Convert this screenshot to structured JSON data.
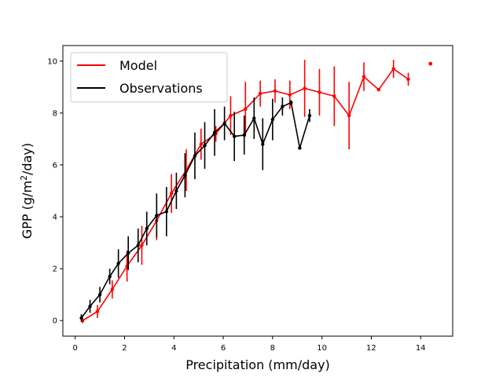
{
  "chart_data": {
    "type": "line",
    "title": "",
    "xlabel": "Precipitation (mm/day)",
    "ylabel_main": "GPP (g/m",
    "ylabel_sup": "2",
    "ylabel_tail": "/day)",
    "xlim": [
      -0.5,
      15.3
    ],
    "ylim": [
      -0.6,
      10.6
    ],
    "xticks": [
      0,
      2,
      4,
      6,
      8,
      10,
      12,
      14
    ],
    "yticks": [
      0,
      2,
      4,
      6,
      8,
      10
    ],
    "legend_position": "top-left",
    "grid": false,
    "series": [
      {
        "name": "Model",
        "color": "#ff0000",
        "x": [
          0.3,
          0.9,
          1.5,
          2.1,
          2.7,
          3.3,
          3.9,
          4.5,
          5.1,
          5.7,
          6.3,
          6.9,
          7.5,
          8.1,
          8.7,
          9.3,
          9.9,
          10.5,
          11.1,
          11.7,
          12.3,
          12.9,
          13.5
        ],
        "y": [
          0.0,
          0.35,
          1.2,
          2.1,
          2.9,
          3.85,
          4.9,
          5.8,
          6.8,
          7.2,
          7.9,
          8.15,
          8.75,
          8.85,
          8.7,
          8.95,
          8.8,
          8.65,
          7.9,
          9.4,
          8.9,
          9.7,
          9.3
        ],
        "err": [
          0.1,
          0.25,
          0.35,
          0.6,
          0.75,
          0.75,
          0.75,
          0.8,
          0.6,
          0.3,
          0.75,
          1.05,
          0.5,
          0.45,
          0.55,
          1.1,
          0.9,
          1.15,
          1.3,
          0.55,
          0.1,
          0.35,
          0.25
        ],
        "has_err": [
          true,
          true,
          true,
          true,
          true,
          true,
          true,
          true,
          true,
          true,
          true,
          true,
          true,
          true,
          true,
          true,
          true,
          true,
          true,
          true,
          false,
          true,
          true
        ],
        "isolated_point": {
          "x": 14.4,
          "y": 9.9
        }
      },
      {
        "name": "Observations",
        "color": "#000000",
        "x": [
          0.25,
          0.6,
          1.0,
          1.4,
          1.75,
          2.15,
          2.55,
          2.9,
          3.3,
          3.7,
          4.1,
          4.45,
          4.85,
          5.25,
          5.65,
          6.05,
          6.45,
          6.85,
          7.25,
          7.6,
          8.0,
          8.4,
          8.75,
          9.1,
          9.5
        ],
        "y": [
          0.1,
          0.55,
          1.0,
          1.7,
          2.2,
          2.6,
          2.9,
          3.55,
          4.05,
          4.2,
          5.0,
          5.6,
          6.35,
          6.75,
          7.25,
          7.6,
          7.1,
          7.15,
          7.8,
          6.8,
          7.75,
          8.25,
          8.4,
          6.65,
          7.9
        ],
        "err": [
          0.15,
          0.25,
          0.3,
          0.3,
          0.55,
          0.65,
          0.65,
          0.65,
          0.85,
          0.95,
          0.7,
          0.85,
          0.9,
          0.9,
          0.9,
          0.65,
          0.95,
          0.75,
          0.8,
          1.0,
          0.8,
          0.35,
          0.1,
          0.0,
          0.25
        ],
        "has_err": [
          true,
          true,
          true,
          true,
          true,
          true,
          true,
          true,
          true,
          true,
          true,
          true,
          true,
          true,
          true,
          true,
          true,
          true,
          true,
          true,
          true,
          true,
          true,
          false,
          true
        ]
      }
    ]
  }
}
